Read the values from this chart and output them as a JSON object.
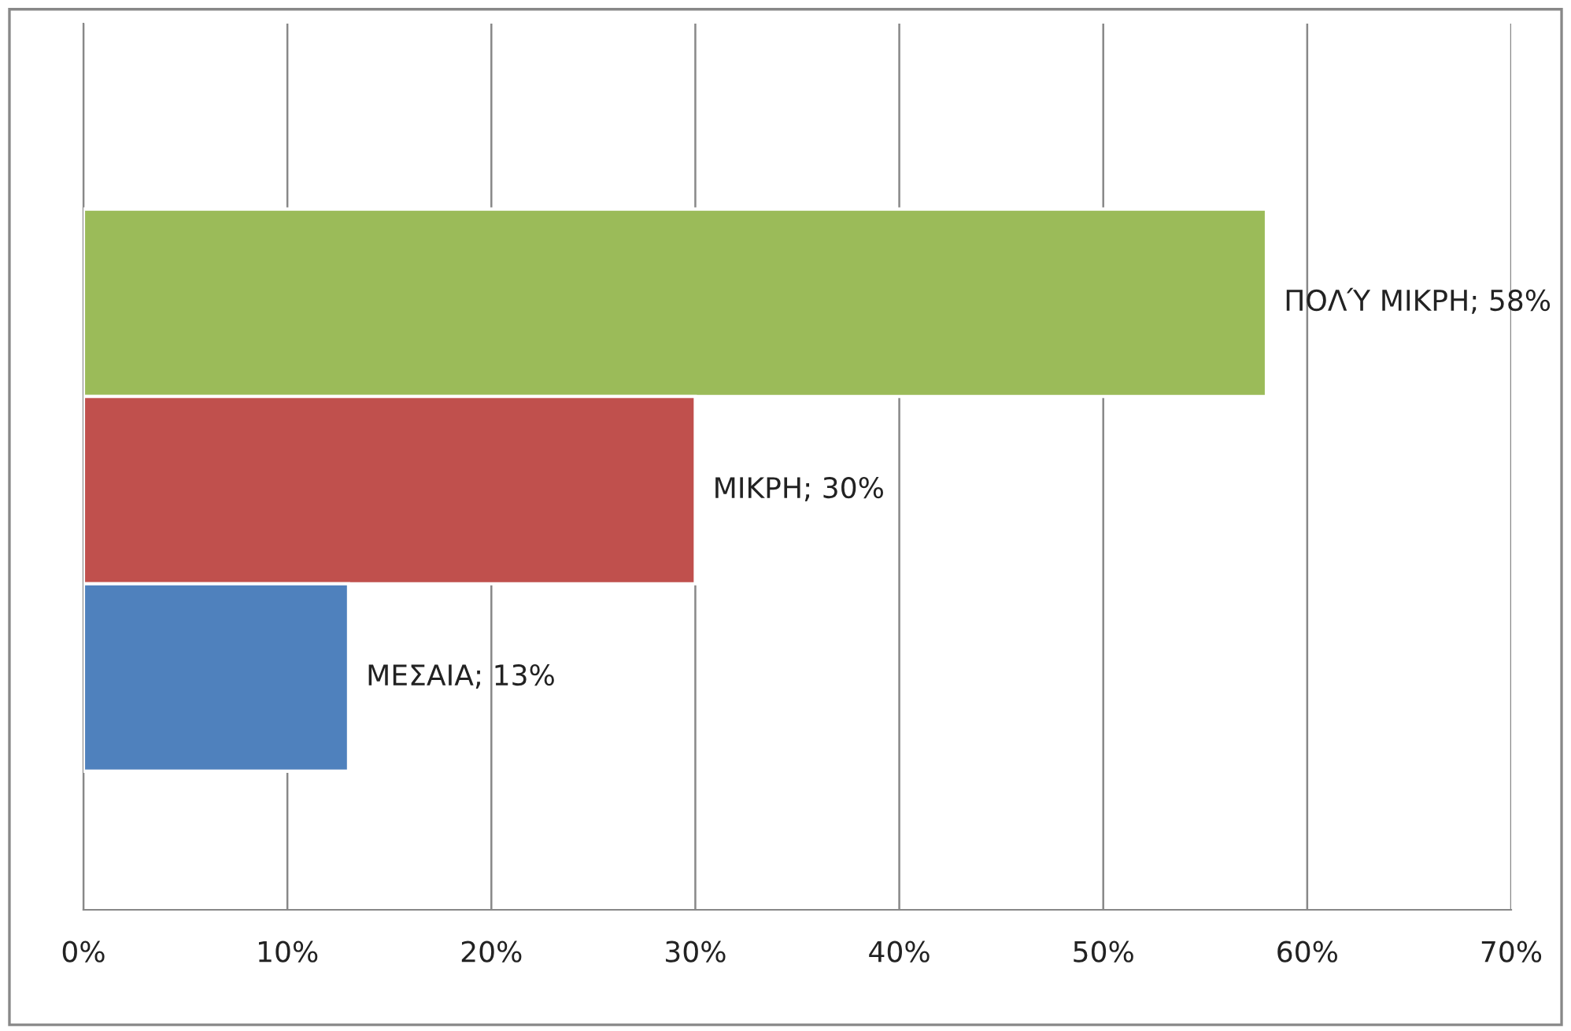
{
  "chart_data": {
    "type": "bar",
    "orientation": "horizontal",
    "categories": [
      null,
      null,
      null
    ],
    "values": [
      58,
      30,
      13
    ],
    "colors": [
      "#9bbb59",
      "#c0504d",
      "#4f81bd"
    ],
    "value_labels": [
      "ΠΟΛΎ ΜΙΚΡΗ; 58%",
      "ΜΙΚΡΗ; 30%",
      "ΜΕΣΑΙΑ; 13%"
    ],
    "xlim": [
      0,
      70
    ],
    "xticks": [
      {
        "value": 0,
        "label": "0%"
      },
      {
        "value": 10,
        "label": "10%"
      },
      {
        "value": 20,
        "label": "20%"
      },
      {
        "value": 30,
        "label": "30%"
      },
      {
        "value": 40,
        "label": "40%"
      },
      {
        "value": 50,
        "label": "50%"
      },
      {
        "value": 60,
        "label": "60%"
      },
      {
        "value": 70,
        "label": "70%"
      }
    ],
    "grid": "x",
    "legend": false
  }
}
